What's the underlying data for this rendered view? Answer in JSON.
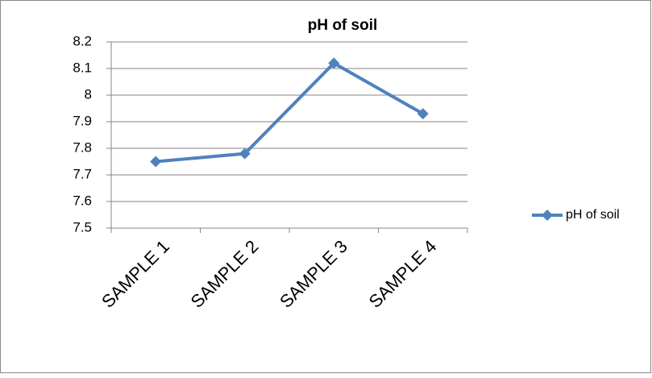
{
  "chart_data": {
    "type": "line",
    "title": "pH of soil",
    "categories": [
      "SAMPLE 1",
      "SAMPLE 2",
      "SAMPLE 3",
      "SAMPLE 4"
    ],
    "series": [
      {
        "name": "pH of soil",
        "color": "#4f81bd",
        "values": [
          7.75,
          7.78,
          8.12,
          7.93
        ]
      }
    ],
    "ylim": [
      7.5,
      8.2
    ],
    "yticks": [
      7.5,
      7.6,
      7.7,
      7.8,
      7.9,
      8,
      8.1,
      8.2
    ],
    "grid": true,
    "legend": "right"
  }
}
